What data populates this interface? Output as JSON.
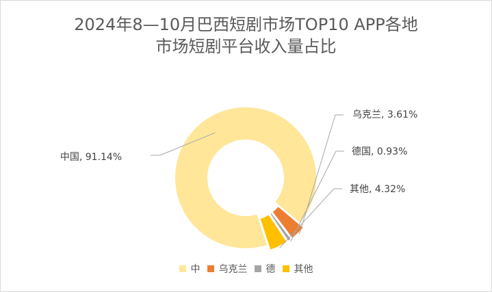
{
  "colors": {
    "china": "#FFE699",
    "ukraine": "#ED7D31",
    "germany": "#A5A5A5",
    "other": "#FFC000"
  },
  "chart_data": {
    "type": "pie",
    "variant": "doughnut",
    "title_line1": "2024年8—10月巴西短剧市场TOP10 APP各地",
    "title_line2": "市场短剧平台收入量占比",
    "categories": [
      "中",
      "乌克兰",
      "德",
      "其他"
    ],
    "values": [
      91.14,
      3.61,
      0.93,
      4.32
    ],
    "data_labels": [
      "中国, 91.14%",
      "乌克兰, 3.61%",
      "德国, 0.93%",
      "其他, 4.32%"
    ],
    "legend_position": "bottom"
  }
}
